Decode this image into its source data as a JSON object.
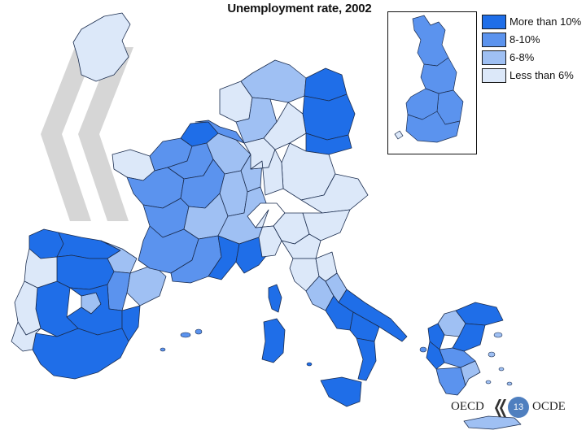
{
  "title": "Unemployment rate, 2002",
  "legend": {
    "items": [
      {
        "label": "More than 10%",
        "color": "#1f6ee8"
      },
      {
        "label": "8-10%",
        "color": "#5b93ee"
      },
      {
        "label": "6-8%",
        "color": "#9fc0f3"
      },
      {
        "label": "Less than 6%",
        "color": "#dce8f9"
      }
    ]
  },
  "footer": {
    "left_text": "OECD",
    "right_text": "OCDE",
    "page_number": "13"
  },
  "colors": {
    "border": "#1b2d4f",
    "watermark": "#d8d8d8"
  }
}
